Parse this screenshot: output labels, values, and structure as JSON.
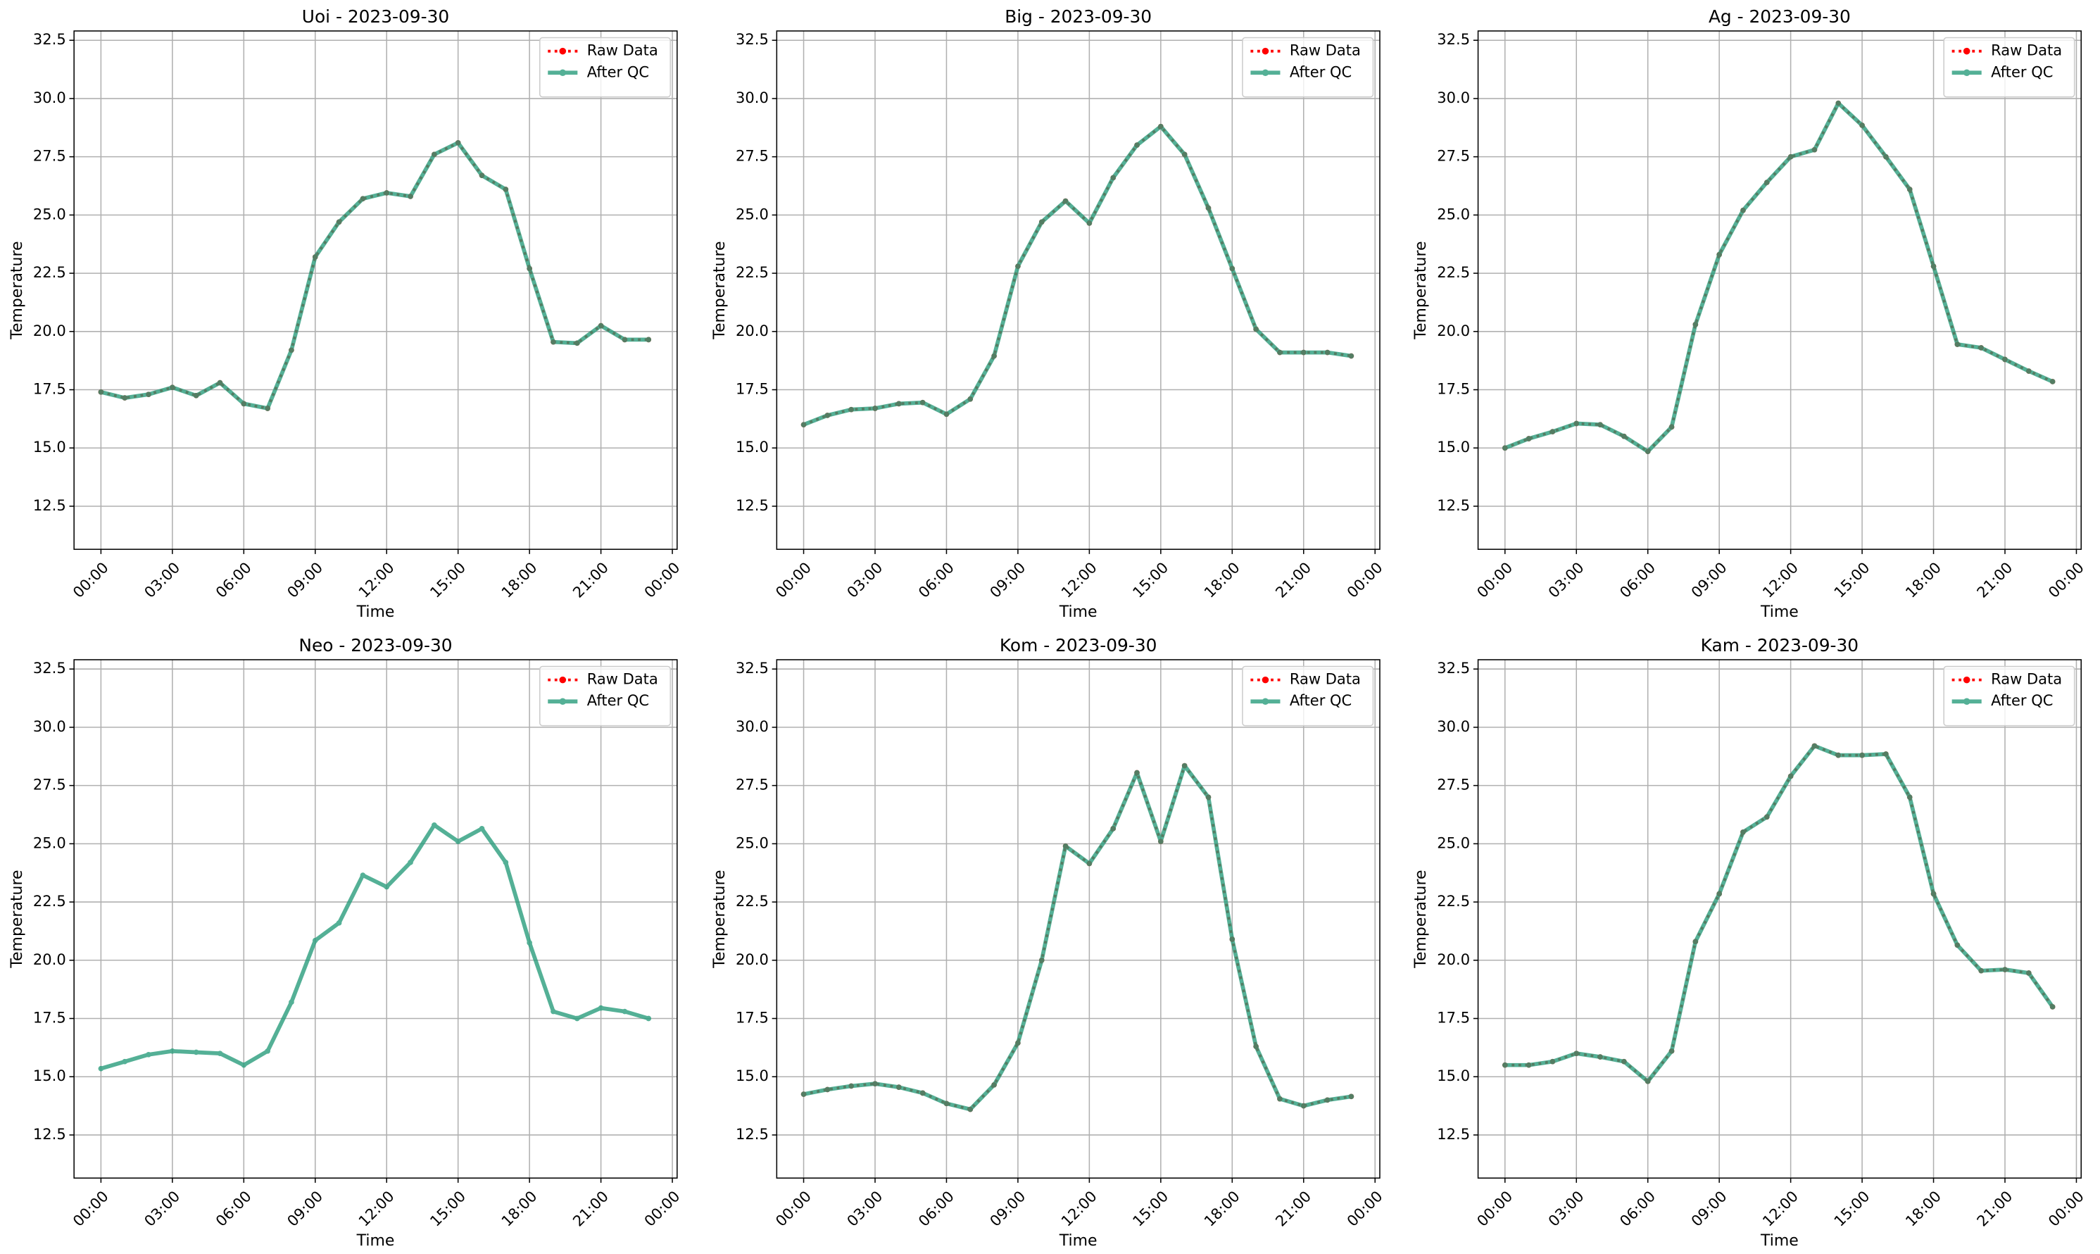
{
  "chart_data": [
    {
      "type": "line",
      "title": "Uoi - 2023-09-30",
      "xlabel": "Time",
      "ylabel": "Temperature",
      "x": [
        0,
        1,
        2,
        3,
        4,
        5,
        6,
        7,
        8,
        9,
        10,
        11,
        12,
        13,
        14,
        15,
        16,
        17,
        18,
        19,
        20,
        21,
        22,
        23
      ],
      "xlim": [
        -1.13,
        24.2
      ],
      "xticks": [
        {
          "value": 0,
          "label": "00:00"
        },
        {
          "value": 3,
          "label": "03:00"
        },
        {
          "value": 6,
          "label": "06:00"
        },
        {
          "value": 9,
          "label": "09:00"
        },
        {
          "value": 12,
          "label": "12:00"
        },
        {
          "value": 15,
          "label": "15:00"
        },
        {
          "value": 18,
          "label": "18:00"
        },
        {
          "value": 21,
          "label": "21:00"
        },
        {
          "value": 24,
          "label": "00:00"
        }
      ],
      "ylim": [
        10.65,
        32.9
      ],
      "yticks": [
        12.5,
        {
          "value": 15,
          "label": "15.0"
        },
        17.5,
        {
          "value": 20,
          "label": "20.0"
        },
        22.5,
        {
          "value": 25,
          "label": "25.0"
        },
        27.5,
        {
          "value": 30,
          "label": "30.0"
        },
        32.5
      ],
      "grid": true,
      "legend": "upper right",
      "series": [
        {
          "name": "Raw Data",
          "color": "#ff0000",
          "values": [
            17.4,
            17.15,
            17.3,
            17.6,
            17.25,
            17.8,
            16.9,
            16.7,
            19.2,
            23.2,
            24.7,
            25.7,
            25.95,
            25.8,
            27.6,
            28.1,
            26.7,
            26.1,
            22.7,
            19.55,
            19.5,
            20.25,
            19.65,
            19.65
          ]
        },
        {
          "name": "After QC",
          "color": "#2a9d7c",
          "values": [
            17.4,
            17.15,
            17.3,
            17.6,
            17.25,
            17.8,
            16.9,
            16.7,
            19.2,
            23.2,
            24.7,
            25.7,
            25.95,
            25.8,
            27.6,
            28.1,
            26.7,
            26.1,
            22.7,
            19.55,
            19.5,
            20.25,
            19.65,
            19.65
          ]
        }
      ]
    },
    {
      "type": "line",
      "title": "Big - 2023-09-30",
      "xlabel": "Time",
      "ylabel": "Temperature",
      "x": [
        0,
        1,
        2,
        3,
        4,
        5,
        6,
        7,
        8,
        9,
        10,
        11,
        12,
        13,
        14,
        15,
        16,
        17,
        18,
        19,
        20,
        21,
        22,
        23
      ],
      "xlim": [
        -1.13,
        24.2
      ],
      "xticks": [
        {
          "value": 0,
          "label": "00:00"
        },
        {
          "value": 3,
          "label": "03:00"
        },
        {
          "value": 6,
          "label": "06:00"
        },
        {
          "value": 9,
          "label": "09:00"
        },
        {
          "value": 12,
          "label": "12:00"
        },
        {
          "value": 15,
          "label": "15:00"
        },
        {
          "value": 18,
          "label": "18:00"
        },
        {
          "value": 21,
          "label": "21:00"
        },
        {
          "value": 24,
          "label": "00:00"
        }
      ],
      "ylim": [
        10.65,
        32.9
      ],
      "yticks": [
        12.5,
        {
          "value": 15,
          "label": "15.0"
        },
        17.5,
        {
          "value": 20,
          "label": "20.0"
        },
        22.5,
        {
          "value": 25,
          "label": "25.0"
        },
        27.5,
        {
          "value": 30,
          "label": "30.0"
        },
        32.5
      ],
      "grid": true,
      "legend": "upper right",
      "series": [
        {
          "name": "Raw Data",
          "color": "#ff0000",
          "values": [
            16.0,
            16.4,
            16.65,
            16.7,
            16.9,
            16.95,
            16.45,
            17.1,
            18.95,
            22.8,
            24.7,
            25.6,
            24.65,
            26.6,
            28.0,
            28.8,
            27.6,
            25.3,
            22.7,
            20.1,
            19.1,
            19.1,
            19.1,
            18.95
          ]
        },
        {
          "name": "After QC",
          "color": "#2a9d7c",
          "values": [
            16.0,
            16.4,
            16.65,
            16.7,
            16.9,
            16.95,
            16.45,
            17.1,
            18.95,
            22.8,
            24.7,
            25.6,
            24.65,
            26.6,
            28.0,
            28.8,
            27.6,
            25.3,
            22.7,
            20.1,
            19.1,
            19.1,
            19.1,
            18.95
          ]
        }
      ]
    },
    {
      "type": "line",
      "title": "Ag - 2023-09-30",
      "xlabel": "Time",
      "ylabel": "Temperature",
      "x": [
        0,
        1,
        2,
        3,
        4,
        5,
        6,
        7,
        8,
        9,
        10,
        11,
        12,
        13,
        14,
        15,
        16,
        17,
        18,
        19,
        20,
        21,
        22,
        23
      ],
      "xlim": [
        -1.13,
        24.2
      ],
      "xticks": [
        {
          "value": 0,
          "label": "00:00"
        },
        {
          "value": 3,
          "label": "03:00"
        },
        {
          "value": 6,
          "label": "06:00"
        },
        {
          "value": 9,
          "label": "09:00"
        },
        {
          "value": 12,
          "label": "12:00"
        },
        {
          "value": 15,
          "label": "15:00"
        },
        {
          "value": 18,
          "label": "18:00"
        },
        {
          "value": 21,
          "label": "21:00"
        },
        {
          "value": 24,
          "label": "00:00"
        }
      ],
      "ylim": [
        10.65,
        32.9
      ],
      "yticks": [
        12.5,
        {
          "value": 15,
          "label": "15.0"
        },
        17.5,
        {
          "value": 20,
          "label": "20.0"
        },
        22.5,
        {
          "value": 25,
          "label": "25.0"
        },
        27.5,
        {
          "value": 30,
          "label": "30.0"
        },
        32.5
      ],
      "grid": true,
      "legend": "upper right",
      "series": [
        {
          "name": "Raw Data",
          "color": "#ff0000",
          "values": [
            15.0,
            15.4,
            15.7,
            16.05,
            16.0,
            15.5,
            14.85,
            15.9,
            20.3,
            23.3,
            25.2,
            26.4,
            27.5,
            27.8,
            29.8,
            28.85,
            27.5,
            26.1,
            22.8,
            19.45,
            19.3,
            18.8,
            18.3,
            17.85
          ]
        },
        {
          "name": "After QC",
          "color": "#2a9d7c",
          "values": [
            15.0,
            15.4,
            15.7,
            16.05,
            16.0,
            15.5,
            14.85,
            15.9,
            20.3,
            23.3,
            25.2,
            26.4,
            27.5,
            27.8,
            29.8,
            28.85,
            27.5,
            26.1,
            22.8,
            19.45,
            19.3,
            18.8,
            18.3,
            17.85
          ]
        }
      ]
    },
    {
      "type": "line",
      "title": "Neo - 2023-09-30",
      "xlabel": "Time",
      "ylabel": "Temperature",
      "x": [
        0,
        1,
        2,
        3,
        4,
        5,
        6,
        7,
        8,
        9,
        10,
        11,
        12,
        13,
        14,
        15,
        16,
        17,
        18,
        19,
        20,
        21,
        22,
        23
      ],
      "xlim": [
        -1.13,
        24.2
      ],
      "xticks": [
        {
          "value": 0,
          "label": "00:00"
        },
        {
          "value": 3,
          "label": "03:00"
        },
        {
          "value": 6,
          "label": "06:00"
        },
        {
          "value": 9,
          "label": "09:00"
        },
        {
          "value": 12,
          "label": "12:00"
        },
        {
          "value": 15,
          "label": "15:00"
        },
        {
          "value": 18,
          "label": "18:00"
        },
        {
          "value": 21,
          "label": "21:00"
        },
        {
          "value": 24,
          "label": "00:00"
        }
      ],
      "ylim": [
        10.65,
        32.9
      ],
      "yticks": [
        12.5,
        {
          "value": 15,
          "label": "15.0"
        },
        17.5,
        {
          "value": 20,
          "label": "20.0"
        },
        22.5,
        {
          "value": 25,
          "label": "25.0"
        },
        27.5,
        {
          "value": 30,
          "label": "30.0"
        },
        32.5
      ],
      "grid": true,
      "legend": "upper right",
      "series": [
        {
          "name": "Raw Data",
          "color": "#ff0000",
          "values": [
            null,
            null,
            null,
            null,
            null,
            null,
            null,
            null,
            null,
            null,
            null,
            null,
            null,
            null,
            null,
            null,
            null,
            null,
            null,
            null,
            null,
            null,
            null,
            null
          ]
        },
        {
          "name": "After QC",
          "color": "#2a9d7c",
          "values": [
            15.35,
            15.65,
            15.95,
            16.1,
            16.05,
            16.0,
            15.5,
            16.1,
            18.2,
            20.85,
            21.6,
            23.65,
            23.15,
            24.2,
            25.8,
            25.1,
            25.65,
            24.2,
            20.75,
            17.8,
            17.5,
            17.95,
            17.8,
            17.5
          ]
        }
      ]
    },
    {
      "type": "line",
      "title": "Kom - 2023-09-30",
      "xlabel": "Time",
      "ylabel": "Temperature",
      "x": [
        0,
        1,
        2,
        3,
        4,
        5,
        6,
        7,
        8,
        9,
        10,
        11,
        12,
        13,
        14,
        15,
        16,
        17,
        18,
        19,
        20,
        21,
        22,
        23
      ],
      "xlim": [
        -1.13,
        24.2
      ],
      "xticks": [
        {
          "value": 0,
          "label": "00:00"
        },
        {
          "value": 3,
          "label": "03:00"
        },
        {
          "value": 6,
          "label": "06:00"
        },
        {
          "value": 9,
          "label": "09:00"
        },
        {
          "value": 12,
          "label": "12:00"
        },
        {
          "value": 15,
          "label": "15:00"
        },
        {
          "value": 18,
          "label": "18:00"
        },
        {
          "value": 21,
          "label": "21:00"
        },
        {
          "value": 24,
          "label": "00:00"
        }
      ],
      "ylim": [
        10.65,
        32.9
      ],
      "yticks": [
        12.5,
        {
          "value": 15,
          "label": "15.0"
        },
        17.5,
        {
          "value": 20,
          "label": "20.0"
        },
        22.5,
        {
          "value": 25,
          "label": "25.0"
        },
        27.5,
        {
          "value": 30,
          "label": "30.0"
        },
        32.5
      ],
      "grid": true,
      "legend": "upper right",
      "series": [
        {
          "name": "Raw Data",
          "color": "#ff0000",
          "values": [
            14.25,
            14.45,
            14.6,
            14.7,
            14.55,
            14.3,
            13.85,
            13.6,
            14.65,
            16.45,
            20.0,
            24.9,
            24.15,
            25.65,
            28.05,
            25.1,
            28.35,
            27.0,
            20.9,
            16.3,
            14.05,
            13.75,
            14.0,
            14.15
          ]
        },
        {
          "name": "After QC",
          "color": "#2a9d7c",
          "values": [
            14.25,
            14.45,
            14.6,
            14.7,
            14.55,
            14.3,
            13.85,
            13.6,
            14.65,
            16.45,
            20.0,
            24.9,
            24.15,
            25.65,
            28.05,
            25.1,
            28.35,
            27.0,
            20.9,
            16.3,
            14.05,
            13.75,
            14.0,
            14.15
          ]
        }
      ]
    },
    {
      "type": "line",
      "title": "Kam - 2023-09-30",
      "xlabel": "Time",
      "ylabel": "Temperature",
      "x": [
        0,
        1,
        2,
        3,
        4,
        5,
        6,
        7,
        8,
        9,
        10,
        11,
        12,
        13,
        14,
        15,
        16,
        17,
        18,
        19,
        20,
        21,
        22,
        23
      ],
      "xlim": [
        -1.13,
        24.2
      ],
      "xticks": [
        {
          "value": 0,
          "label": "00:00"
        },
        {
          "value": 3,
          "label": "03:00"
        },
        {
          "value": 6,
          "label": "06:00"
        },
        {
          "value": 9,
          "label": "09:00"
        },
        {
          "value": 12,
          "label": "12:00"
        },
        {
          "value": 15,
          "label": "15:00"
        },
        {
          "value": 18,
          "label": "18:00"
        },
        {
          "value": 21,
          "label": "21:00"
        },
        {
          "value": 24,
          "label": "00:00"
        }
      ],
      "ylim": [
        10.65,
        32.9
      ],
      "yticks": [
        12.5,
        {
          "value": 15,
          "label": "15.0"
        },
        17.5,
        {
          "value": 20,
          "label": "20.0"
        },
        22.5,
        {
          "value": 25,
          "label": "25.0"
        },
        27.5,
        {
          "value": 30,
          "label": "30.0"
        },
        32.5
      ],
      "grid": true,
      "legend": "upper right",
      "series": [
        {
          "name": "Raw Data",
          "color": "#ff0000",
          "values": [
            15.5,
            15.5,
            15.65,
            16.0,
            15.85,
            15.65,
            14.8,
            16.1,
            20.8,
            22.85,
            25.5,
            26.15,
            27.9,
            29.2,
            28.8,
            28.8,
            28.85,
            27.0,
            22.85,
            20.65,
            19.55,
            19.6,
            19.45,
            18.0
          ]
        },
        {
          "name": "After QC",
          "color": "#2a9d7c",
          "values": [
            15.5,
            15.5,
            15.65,
            16.0,
            15.85,
            15.65,
            14.8,
            16.1,
            20.8,
            22.85,
            25.5,
            26.15,
            27.9,
            29.2,
            28.8,
            28.8,
            28.85,
            27.0,
            22.85,
            20.65,
            19.55,
            19.6,
            19.45,
            18.0
          ]
        }
      ]
    }
  ]
}
